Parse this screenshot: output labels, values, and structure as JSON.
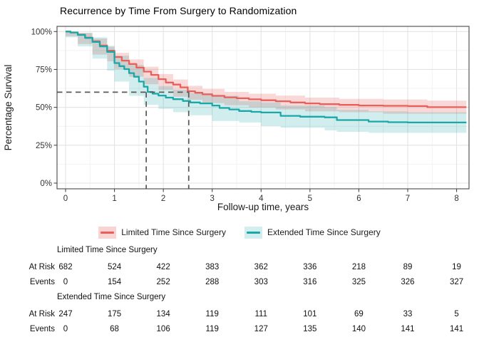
{
  "page": {
    "title": "Recurrence by Time From Surgery to Randomization"
  },
  "chart_data": {
    "type": "line",
    "subtype": "kaplan-meier-step",
    "title": "Recurrence by Time From Surgery to Randomization",
    "xlabel": "Follow-up time, years",
    "ylabel": "Percentage Survival",
    "xlim": [
      -0.18,
      8.26
    ],
    "ylim": [
      0,
      100
    ],
    "x_ticks": [
      0,
      1,
      2,
      3,
      4,
      5,
      6,
      7,
      8
    ],
    "y_ticks": [
      {
        "value": 0,
        "label": "0%"
      },
      {
        "value": 25,
        "label": "25%"
      },
      {
        "value": 50,
        "label": "50%"
      },
      {
        "value": 75,
        "label": "75%"
      },
      {
        "value": 100,
        "label": "100%"
      }
    ],
    "grid": {
      "major": true,
      "minor": true,
      "x_minor_step": 0.5,
      "y_minor_step": 12.5
    },
    "legend_position": "bottom",
    "reference_lines": {
      "y": 60,
      "x_values": [
        1.65,
        2.52
      ],
      "color": "#595959",
      "style": "dashed"
    },
    "series": [
      {
        "name": "Limited Time Since Surgery",
        "color": "#E8605C",
        "band_color": "rgba(232,96,92,0.24)",
        "points": [
          [
            0,
            100
          ],
          [
            0.1,
            99.4
          ],
          [
            0.25,
            98
          ],
          [
            0.4,
            96
          ],
          [
            0.55,
            93.6
          ],
          [
            0.7,
            90.8
          ],
          [
            0.85,
            87.4
          ],
          [
            1.0,
            83.2
          ],
          [
            1.15,
            80.8
          ],
          [
            1.3,
            78.6
          ],
          [
            1.45,
            76.2
          ],
          [
            1.6,
            73.6
          ],
          [
            1.75,
            71.4
          ],
          [
            1.9,
            68.6
          ],
          [
            2.05,
            66.4
          ],
          [
            2.2,
            65.0
          ],
          [
            2.35,
            63.2
          ],
          [
            2.5,
            60.6
          ],
          [
            2.65,
            59.6
          ],
          [
            2.8,
            58.6
          ],
          [
            3.0,
            57.6
          ],
          [
            3.25,
            56.6
          ],
          [
            3.5,
            56.0
          ],
          [
            3.75,
            55.3
          ],
          [
            4.0,
            54.7
          ],
          [
            4.3,
            54.0
          ],
          [
            4.6,
            53.2
          ],
          [
            4.9,
            52.6
          ],
          [
            5.2,
            52.1
          ],
          [
            5.6,
            51.6
          ],
          [
            6.0,
            51.2
          ],
          [
            6.5,
            51.0
          ],
          [
            7.0,
            50.8
          ],
          [
            7.4,
            50.1
          ],
          [
            8.2,
            50.1
          ]
        ],
        "ci": [
          [
            0,
            99.2,
            100
          ],
          [
            0.25,
            97,
            99
          ],
          [
            0.55,
            91.8,
            95.4
          ],
          [
            0.85,
            84.8,
            90
          ],
          [
            1.0,
            80.4,
            86
          ],
          [
            1.3,
            75.4,
            81.6
          ],
          [
            1.6,
            70.2,
            76.8
          ],
          [
            1.9,
            65.2,
            72
          ],
          [
            2.2,
            61.4,
            68.4
          ],
          [
            2.5,
            57,
            64.2
          ],
          [
            2.8,
            55,
            62.2
          ],
          [
            3.25,
            52.8,
            60.2
          ],
          [
            3.75,
            51.4,
            59
          ],
          [
            4.3,
            50,
            57.8
          ],
          [
            4.9,
            48.6,
            56.4
          ],
          [
            5.6,
            47.4,
            55.6
          ],
          [
            6.5,
            46.8,
            55.2
          ],
          [
            7.4,
            45.8,
            54.4
          ],
          [
            8.2,
            45.8,
            54.4
          ]
        ]
      },
      {
        "name": "Extended Time Since Surgery",
        "color": "#1AA7A8",
        "band_color": "rgba(26,167,168,0.20)",
        "points": [
          [
            0,
            100
          ],
          [
            0.1,
            99.4
          ],
          [
            0.25,
            97.8
          ],
          [
            0.4,
            95.8
          ],
          [
            0.55,
            93.2
          ],
          [
            0.7,
            90.2
          ],
          [
            0.85,
            86.6
          ],
          [
            1.0,
            79.2
          ],
          [
            1.1,
            77.2
          ],
          [
            1.2,
            75.2
          ],
          [
            1.3,
            72.6
          ],
          [
            1.4,
            70.2
          ],
          [
            1.5,
            67.0
          ],
          [
            1.6,
            63.6
          ],
          [
            1.68,
            60.2
          ],
          [
            1.78,
            59.0
          ],
          [
            1.9,
            57.8
          ],
          [
            2.05,
            56.4
          ],
          [
            2.2,
            55.4
          ],
          [
            2.4,
            54.2
          ],
          [
            2.55,
            53.2
          ],
          [
            2.75,
            52.6
          ],
          [
            3.0,
            51.2
          ],
          [
            3.15,
            49.6
          ],
          [
            3.35,
            48.6
          ],
          [
            3.55,
            47.6
          ],
          [
            3.8,
            47.0
          ],
          [
            4.0,
            46.6
          ],
          [
            4.4,
            44.4
          ],
          [
            4.8,
            43.8
          ],
          [
            5.3,
            43.4
          ],
          [
            5.55,
            41.6
          ],
          [
            6.2,
            40.6
          ],
          [
            6.6,
            40.2
          ],
          [
            7.0,
            40.0
          ],
          [
            8.2,
            40.0
          ]
        ],
        "ci": [
          [
            0,
            98.8,
            100
          ],
          [
            0.25,
            96.2,
            99.2
          ],
          [
            0.55,
            90.2,
            96.2
          ],
          [
            0.85,
            82.2,
            90.6
          ],
          [
            1.0,
            74.2,
            84
          ],
          [
            1.3,
            67,
            78
          ],
          [
            1.6,
            57.6,
            69.4
          ],
          [
            1.9,
            51.6,
            64
          ],
          [
            2.2,
            49,
            61.6
          ],
          [
            2.55,
            46.8,
            59.4
          ],
          [
            3.0,
            44.8,
            57.6
          ],
          [
            3.55,
            41,
            54
          ],
          [
            4.0,
            40,
            53.2
          ],
          [
            4.4,
            37.6,
            51.2
          ],
          [
            5.3,
            36.6,
            50.2
          ],
          [
            5.55,
            34.8,
            48.4
          ],
          [
            6.2,
            33.8,
            47.4
          ],
          [
            7.0,
            33.2,
            46.8
          ],
          [
            8.2,
            33.2,
            46.8
          ]
        ]
      }
    ]
  },
  "risk_table": {
    "time_points": [
      0,
      1,
      2,
      3,
      4,
      5,
      6,
      7,
      8
    ],
    "groups": [
      {
        "label": "Limited Time Since Surgery",
        "rows": [
          {
            "label": "At Risk",
            "values": [
              "682",
              "524",
              "422",
              "383",
              "362",
              "336",
              "218",
              "89",
              "19"
            ]
          },
          {
            "label": "Events",
            "values": [
              "0",
              "154",
              "252",
              "288",
              "303",
              "316",
              "325",
              "326",
              "327"
            ]
          }
        ]
      },
      {
        "label": "Extended Time Since Surgery",
        "rows": [
          {
            "label": "At Risk",
            "values": [
              "247",
              "175",
              "134",
              "119",
              "111",
              "101",
              "69",
              "33",
              "5"
            ]
          },
          {
            "label": "Events",
            "values": [
              "0",
              "68",
              "106",
              "119",
              "127",
              "135",
              "140",
              "141",
              "141"
            ]
          }
        ]
      }
    ]
  },
  "colors": {
    "panel_border": "#474747",
    "grid_major": "#e3e3e3",
    "grid_minor": "#f2f2f2",
    "axis_text": "#333333",
    "dashed_reference": "#595959"
  }
}
